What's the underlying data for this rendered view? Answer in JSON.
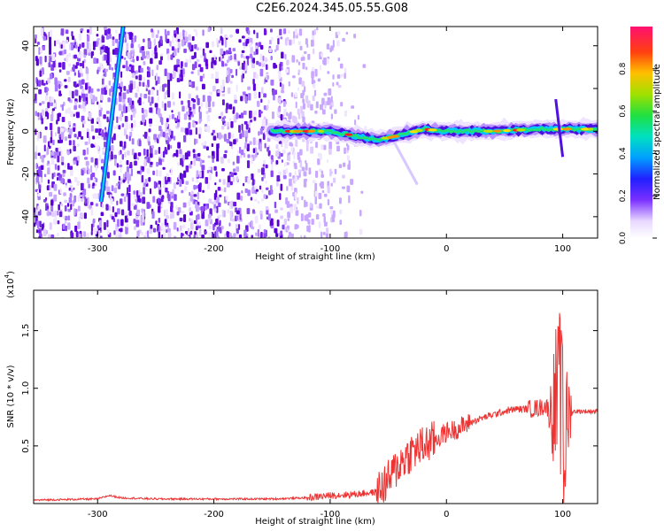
{
  "page": {
    "title": "C2E6.2024.345.05.55.G08"
  },
  "colors": {
    "snr_line": "#ee3333",
    "colormap": [
      "#f0e8ff",
      "#d8c0ff",
      "#a070ff",
      "#5a10e0",
      "#2020ff",
      "#00c0ff",
      "#00e0a0",
      "#40e020",
      "#c0e000",
      "#ff9000",
      "#ff2020",
      "#ff1060"
    ]
  },
  "chart_data": [
    {
      "type": "heatmap",
      "title": "C2E6.2024.345.05.55.G08",
      "xlabel": "Height of straight line (km)",
      "ylabel": "Frequency (Hz)",
      "xlim": [
        -355,
        130
      ],
      "ylim": [
        -50,
        49
      ],
      "x_ticks": [
        -300,
        -200,
        -100,
        0,
        100
      ],
      "y_ticks": [
        -40,
        -20,
        0,
        20,
        40
      ],
      "grid": false,
      "colorbar": {
        "label": "Normalized spectral amplitude",
        "range": [
          0,
          1
        ],
        "ticks": [
          0.0,
          0.2,
          0.4,
          0.6,
          0.8
        ]
      },
      "features": [
        {
          "name": "scattered noise",
          "x_range": [
            -355,
            -70
          ],
          "y_range": [
            -50,
            49
          ]
        },
        {
          "name": "inclined streak",
          "x": [
            -297,
            -278
          ],
          "y": [
            -33,
            49
          ]
        },
        {
          "name": "main signal band",
          "x": [
            -150,
            -100,
            -60,
            -40,
            -20,
            0,
            40,
            80,
            100,
            130
          ],
          "y": [
            0,
            0,
            -4,
            -2,
            1,
            0,
            0,
            1,
            1,
            1
          ]
        }
      ]
    },
    {
      "type": "line",
      "xlabel": "Height of straight line (km)",
      "ylabel": "SNR (10 * v/v)",
      "y_multiplier": "(x10^4)",
      "xlim": [
        -355,
        130
      ],
      "ylim": [
        0,
        1.85
      ],
      "x_ticks": [
        -300,
        -200,
        -100,
        0,
        100
      ],
      "y_ticks": [
        0.5,
        1.0,
        1.5
      ],
      "grid": false,
      "series": [
        {
          "x": [
            -355,
            -300,
            -290,
            -280,
            -250,
            -200,
            -150,
            -120,
            -100,
            -80,
            -60,
            -50,
            -40,
            -30,
            -20,
            -10,
            0,
            10,
            20,
            30,
            40,
            50,
            60,
            70,
            80,
            85,
            90,
            95,
            100,
            105,
            110,
            130
          ],
          "y": [
            0.03,
            0.04,
            0.07,
            0.05,
            0.04,
            0.04,
            0.04,
            0.05,
            0.07,
            0.08,
            0.1,
            0.2,
            0.35,
            0.45,
            0.5,
            0.55,
            0.62,
            0.65,
            0.7,
            0.74,
            0.77,
            0.8,
            0.82,
            0.82,
            0.83,
            0.85,
            0.8,
            0.9,
            0.35,
            0.78,
            0.8,
            0.8
          ]
        }
      ]
    }
  ],
  "axes": {
    "top": {
      "xlabel": "Height of straight line (km)",
      "ylabel": "Frequency (Hz)",
      "x_tick_labels": [
        "-300",
        "-200",
        "-100",
        "0",
        "100"
      ],
      "y_tick_labels": [
        "-40",
        "-20",
        "0",
        "20",
        "40"
      ],
      "colorbar_label": "Normalized spectral amplitude",
      "colorbar_tick_labels": [
        "0.0",
        "0.2",
        "0.4",
        "0.6",
        "0.8"
      ]
    },
    "bottom": {
      "xlabel": "Height of straight line (km)",
      "ylabel": "SNR (10 * v/v)",
      "multiplier_base": "(x10",
      "multiplier_exp": "4",
      "multiplier_close": ")",
      "x_tick_labels": [
        "-300",
        "-200",
        "-100",
        "0",
        "100"
      ],
      "y_tick_labels": [
        "0.5",
        "1.0",
        "1.5"
      ]
    }
  }
}
